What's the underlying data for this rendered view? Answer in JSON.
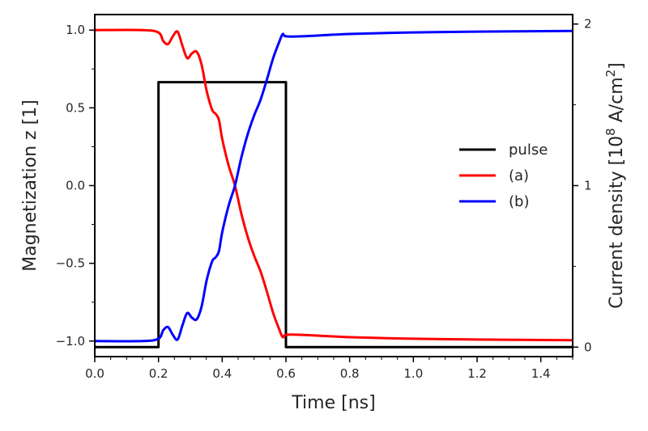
{
  "chart_data": {
    "type": "line",
    "xlabel": "Time [ns]",
    "ylabel": "Magnetization z [1]",
    "y2label": {
      "main": "Current density [10",
      "exp1": "8",
      "mid": " A/cm",
      "exp2": "2",
      "end": "]"
    },
    "xlim": [
      0.0,
      1.5
    ],
    "ylim": [
      -1.1,
      1.1
    ],
    "y2lim": [
      -0.0587,
      2.0587
    ],
    "x_ticks": [
      "0.0",
      "0.2",
      "0.4",
      "0.6",
      "0.8",
      "1.0",
      "1.2",
      "1.4"
    ],
    "x_tick_values": [
      0.0,
      0.2,
      0.4,
      0.6,
      0.8,
      1.0,
      1.2,
      1.4
    ],
    "x_minor_step": 0.1,
    "y_ticks": [
      "−1.0",
      "−0.5",
      "0.0",
      "0.5",
      "1.0"
    ],
    "y_tick_values": [
      -1.0,
      -0.5,
      0.0,
      0.5,
      1.0
    ],
    "y_minor_step": 0.25,
    "y2_ticks": [
      "0",
      "1",
      "2"
    ],
    "y2_tick_values": [
      0,
      1,
      2
    ],
    "y2_minor_step": 0.5,
    "grid": false,
    "legend_position": "right",
    "series": [
      {
        "name": "pulse",
        "axis": "right",
        "color": "#000000",
        "x": [
          0.0,
          0.2,
          0.2,
          0.6,
          0.6,
          1.5
        ],
        "y": [
          0,
          0,
          1.64,
          1.64,
          0,
          0
        ]
      },
      {
        "name": "(a)",
        "axis": "left",
        "color": "#ff0000",
        "x": [
          0.0,
          0.15,
          0.2,
          0.215,
          0.23,
          0.245,
          0.26,
          0.275,
          0.29,
          0.305,
          0.32,
          0.335,
          0.35,
          0.36,
          0.37,
          0.38,
          0.39,
          0.4,
          0.42,
          0.44,
          0.46,
          0.48,
          0.5,
          0.52,
          0.54,
          0.56,
          0.58,
          0.59,
          0.6,
          0.65,
          0.8,
          1.0,
          1.2,
          1.5
        ],
        "y": [
          1.0,
          1.0,
          0.985,
          0.93,
          0.91,
          0.96,
          0.99,
          0.9,
          0.82,
          0.85,
          0.86,
          0.78,
          0.62,
          0.54,
          0.48,
          0.46,
          0.42,
          0.3,
          0.13,
          0.0,
          -0.18,
          -0.33,
          -0.45,
          -0.55,
          -0.68,
          -0.82,
          -0.93,
          -0.975,
          -0.96,
          -0.96,
          -0.975,
          -0.985,
          -0.99,
          -0.995
        ]
      },
      {
        "name": "(b)",
        "axis": "left",
        "color": "#0000ff",
        "x": [
          0.0,
          0.15,
          0.2,
          0.215,
          0.23,
          0.245,
          0.26,
          0.275,
          0.29,
          0.305,
          0.32,
          0.335,
          0.35,
          0.36,
          0.37,
          0.38,
          0.39,
          0.4,
          0.42,
          0.44,
          0.46,
          0.48,
          0.5,
          0.52,
          0.54,
          0.56,
          0.58,
          0.59,
          0.6,
          0.65,
          0.8,
          1.0,
          1.2,
          1.5
        ],
        "y": [
          -1.0,
          -1.0,
          -0.985,
          -0.93,
          -0.91,
          -0.96,
          -0.99,
          -0.9,
          -0.82,
          -0.85,
          -0.86,
          -0.78,
          -0.62,
          -0.54,
          -0.48,
          -0.46,
          -0.42,
          -0.3,
          -0.13,
          0.0,
          0.18,
          0.33,
          0.45,
          0.55,
          0.68,
          0.82,
          0.93,
          0.975,
          0.96,
          0.96,
          0.975,
          0.985,
          0.99,
          0.995
        ]
      }
    ]
  }
}
